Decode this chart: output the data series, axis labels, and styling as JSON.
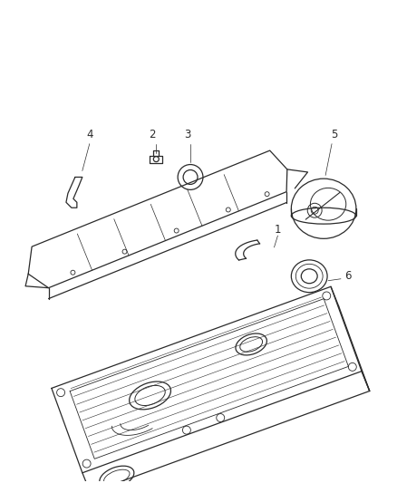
{
  "background_color": "#ffffff",
  "line_color": "#2a2a2a",
  "label_color": "#2a2a2a",
  "fig_width": 4.38,
  "fig_height": 5.33,
  "dpi": 100,
  "label_fontsize": 8.5
}
